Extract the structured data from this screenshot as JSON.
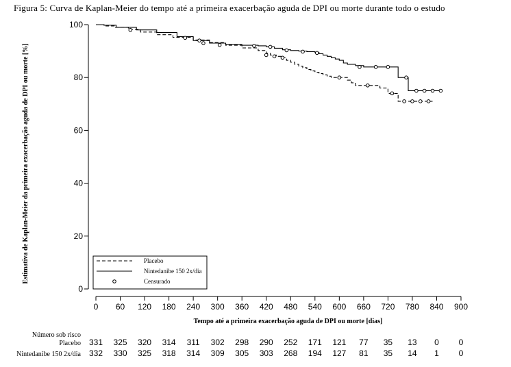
{
  "figure_title": "Figura 5: Curva de Kaplan-Meier do tempo até a primeira exacerbação aguda de DPI ou morte durante todo o estudo",
  "chart_data": {
    "type": "line",
    "title": "Figura 5: Curva de Kaplan-Meier do tempo até a primeira exacerbação aguda de DPI ou morte durante todo o estudo",
    "xlabel": "Tempo até a primeira exacerbação aguda de DPI ou morte [dias]",
    "ylabel": "Estimativa de Kaplan-Meier da primeira exacerbação aguda de DPI ou morte [%]",
    "xlim": [
      0,
      900
    ],
    "ylim": [
      0,
      100
    ],
    "xticks": [
      0,
      60,
      120,
      180,
      240,
      300,
      360,
      420,
      480,
      540,
      600,
      660,
      720,
      780,
      840,
      900
    ],
    "yticks": [
      0,
      20,
      40,
      60,
      80,
      100
    ],
    "grid": false,
    "legend_position": "bottom-left",
    "legend": {
      "placebo": "Placebo",
      "nintedanib": "Nintedanibe 150 2x/dia",
      "censored": "Censurado"
    },
    "series": [
      {
        "name": "Placebo",
        "style": "dashed",
        "x": [
          0,
          20,
          45,
          80,
          110,
          150,
          190,
          240,
          280,
          320,
          360,
          400,
          420,
          430,
          445,
          460,
          470,
          480,
          490,
          500,
          510,
          520,
          530,
          540,
          550,
          560,
          570,
          580,
          590,
          600,
          610,
          620,
          630,
          640,
          660,
          680,
          700,
          720,
          740,
          745,
          760,
          780,
          830
        ],
        "y": [
          100,
          99.5,
          99,
          98.2,
          97.2,
          96.2,
          95.2,
          94.2,
          93.2,
          92.2,
          91.2,
          90.2,
          89.2,
          88.5,
          88,
          87.5,
          86.5,
          85.8,
          85,
          84.3,
          83.7,
          83,
          82.5,
          82,
          81.5,
          81,
          80.5,
          80,
          80,
          80,
          80,
          79,
          78,
          77,
          77,
          77,
          76,
          74,
          74,
          71,
          71,
          71,
          71
        ]
      },
      {
        "name": "Nintedanibe 150 2x/dia",
        "style": "solid",
        "x": [
          0,
          20,
          50,
          100,
          150,
          200,
          240,
          280,
          320,
          360,
          400,
          420,
          440,
          460,
          480,
          500,
          520,
          540,
          550,
          560,
          570,
          580,
          590,
          600,
          610,
          620,
          640,
          660,
          680,
          700,
          720,
          730,
          740,
          745,
          760,
          770,
          780,
          850
        ],
        "y": [
          100,
          99.8,
          99,
          98,
          97,
          95.5,
          94,
          93,
          92.5,
          92.2,
          92,
          91.6,
          91.1,
          90.5,
          90.2,
          90,
          89.8,
          89.5,
          89,
          88.5,
          88,
          87.5,
          87,
          86.5,
          85.5,
          85,
          84.5,
          84,
          84,
          84,
          84,
          84,
          84,
          80,
          80,
          75,
          75,
          75
        ]
      }
    ],
    "censored_points": {
      "placebo": [
        [
          85,
          98
        ],
        [
          220,
          95
        ],
        [
          265,
          93
        ],
        [
          420,
          88.5
        ],
        [
          440,
          88
        ],
        [
          460,
          87.5
        ],
        [
          600,
          80
        ],
        [
          670,
          77
        ],
        [
          730,
          74
        ],
        [
          760,
          71
        ],
        [
          780,
          71
        ],
        [
          800,
          71
        ],
        [
          820,
          71
        ]
      ],
      "nintedanib": [
        [
          255,
          94
        ],
        [
          305,
          92.3
        ],
        [
          390,
          92
        ],
        [
          430,
          91.6
        ],
        [
          470,
          90.3
        ],
        [
          510,
          89.8
        ],
        [
          545,
          89.3
        ],
        [
          650,
          84
        ],
        [
          690,
          84
        ],
        [
          720,
          84
        ],
        [
          765,
          80
        ],
        [
          790,
          75
        ],
        [
          810,
          75
        ],
        [
          830,
          75
        ],
        [
          850,
          75
        ]
      ]
    },
    "risk_table": {
      "header": "Número sob risco",
      "rows": [
        {
          "label": "Placebo",
          "values": [
            331,
            325,
            320,
            314,
            311,
            302,
            298,
            290,
            252,
            171,
            121,
            77,
            35,
            13,
            0,
            0
          ]
        },
        {
          "label": "Nintedanibe 150 2x/dia",
          "values": [
            332,
            330,
            325,
            318,
            314,
            309,
            305,
            303,
            268,
            194,
            127,
            81,
            35,
            14,
            1,
            0
          ]
        }
      ]
    }
  }
}
